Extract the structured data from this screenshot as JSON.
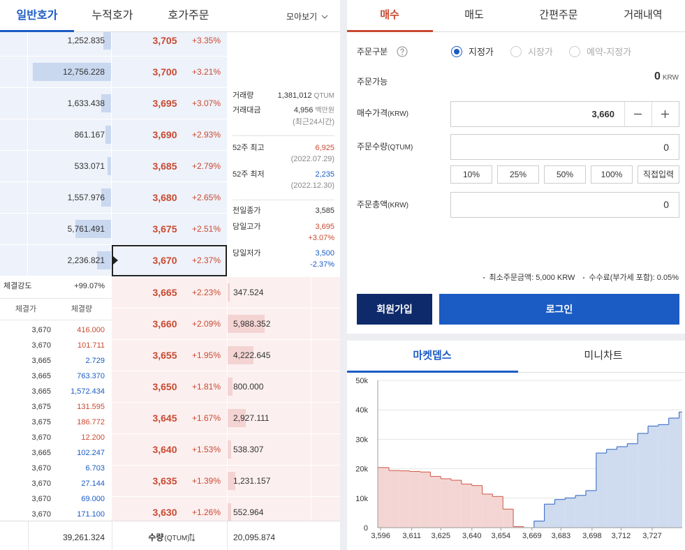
{
  "orderbook": {
    "tabs": [
      "일반호가",
      "누적호가",
      "호가주문"
    ],
    "view_toggle": "모아보기",
    "asks": [
      {
        "size": "1,252.835",
        "price": "3,705",
        "change": "+3.35%"
      },
      {
        "size": "12,756.228",
        "price": "3,700",
        "change": "+3.21%"
      },
      {
        "size": "1,633.438",
        "price": "3,695",
        "change": "+3.07%"
      },
      {
        "size": "861.167",
        "price": "3,690",
        "change": "+2.93%"
      },
      {
        "size": "533.071",
        "price": "3,685",
        "change": "+2.79%"
      },
      {
        "size": "1,557.976",
        "price": "3,680",
        "change": "+2.65%"
      },
      {
        "size": "5,761.491",
        "price": "3,675",
        "change": "+2.51%"
      },
      {
        "size": "2,236.821",
        "price": "3,670",
        "change": "+2.37%"
      }
    ],
    "bids": [
      {
        "size": "347.524",
        "price": "3,665",
        "change": "+2.23%"
      },
      {
        "size": "5,988.352",
        "price": "3,660",
        "change": "+2.09%"
      },
      {
        "size": "4,222.645",
        "price": "3,655",
        "change": "+1.95%"
      },
      {
        "size": "800.000",
        "price": "3,650",
        "change": "+1.81%"
      },
      {
        "size": "2,927.111",
        "price": "3,645",
        "change": "+1.67%"
      },
      {
        "size": "538.307",
        "price": "3,640",
        "change": "+1.53%"
      },
      {
        "size": "1,231.157",
        "price": "3,635",
        "change": "+1.39%"
      },
      {
        "size": "552.964",
        "price": "3,630",
        "change": "+1.26%"
      }
    ],
    "market_info": [
      {
        "label": "거래량",
        "value": "1,381,012",
        "unit": "QTUM"
      },
      {
        "label": "거래대금",
        "value": "4,956",
        "unit": "백만원",
        "note": "(최근24시간)"
      },
      {
        "label": "52주 최고",
        "value": "6,925",
        "note": "(2022.07.29)",
        "color": "#c84a31"
      },
      {
        "label": "52주 최저",
        "value": "2,235",
        "note": "(2022.12.30)",
        "color": "#1a5bc4"
      },
      {
        "label": "전일종가",
        "value": "3,585"
      },
      {
        "label": "당일고가",
        "value": "3,695",
        "note": "+3.07%",
        "color": "#c84a31",
        "note_color": "#c84a31"
      },
      {
        "label": "당일저가",
        "value": "3,500",
        "note": "-2.37%",
        "color": "#1a5bc4",
        "note_color": "#1a5bc4"
      }
    ],
    "trade_strength": {
      "label": "체결강도",
      "value": "+99.07%"
    },
    "trades": {
      "headers": [
        "체결가",
        "체결량"
      ],
      "rows": [
        {
          "price": "3,670",
          "volume": "416.000",
          "color": "#c84a31"
        },
        {
          "price": "3,670",
          "volume": "101.711",
          "color": "#c84a31"
        },
        {
          "price": "3,665",
          "volume": "2.729",
          "color": "#1a5bc4"
        },
        {
          "price": "3,665",
          "volume": "763.370",
          "color": "#1a5bc4"
        },
        {
          "price": "3,665",
          "volume": "1,572.434",
          "color": "#1a5bc4"
        },
        {
          "price": "3,675",
          "volume": "131.595",
          "color": "#c84a31"
        },
        {
          "price": "3,675",
          "volume": "186.772",
          "color": "#c84a31"
        },
        {
          "price": "3,670",
          "volume": "12.200",
          "color": "#c84a31"
        },
        {
          "price": "3,665",
          "volume": "102.247",
          "color": "#1a5bc4"
        },
        {
          "price": "3,670",
          "volume": "6.703",
          "color": "#1a5bc4"
        },
        {
          "price": "3,670",
          "volume": "27.144",
          "color": "#1a5bc4"
        },
        {
          "price": "3,670",
          "volume": "69.000",
          "color": "#1a5bc4"
        },
        {
          "price": "3,670",
          "volume": "171.100",
          "color": "#1a5bc4"
        }
      ]
    },
    "footer": {
      "ask_total": "39,261.324",
      "label": "수량",
      "unit": "(QTUM)",
      "bid_total": "20,095.874"
    }
  },
  "order_form": {
    "tabs": [
      "매수",
      "매도",
      "간편주문",
      "거래내역"
    ],
    "order_type": {
      "label": "주문구분",
      "options": [
        "지정가",
        "시장가",
        "예약-지정가"
      ]
    },
    "available": {
      "label": "주문가능",
      "value": "0",
      "unit": "KRW"
    },
    "price": {
      "label": "매수가격",
      "unit": "(KRW)",
      "value": "3,660"
    },
    "quantity": {
      "label": "주문수량",
      "unit": "(QTUM)",
      "value": "0"
    },
    "percent_buttons": [
      "10%",
      "25%",
      "50%",
      "100%",
      "직접입력"
    ],
    "total": {
      "label": "주문총액",
      "unit": "(KRW)",
      "value": "0"
    },
    "notes": [
      "최소주문금액: 5,000 KRW",
      "수수료(부가세 포함): 0.05%"
    ],
    "buttons": [
      "회원가입",
      "로그인"
    ]
  },
  "depth_panel": {
    "tabs": [
      "마켓뎁스",
      "미니차트"
    ],
    "chart": {
      "type": "depth",
      "xlim": [
        3594.6,
        3741.5
      ],
      "ylim": [
        0,
        50000
      ],
      "xticks": [
        {
          "value": 3596,
          "label": "3,596"
        },
        {
          "value": 3611,
          "label": "3,611"
        },
        {
          "value": 3625,
          "label": "3,625"
        },
        {
          "value": 3640,
          "label": "3,640"
        },
        {
          "value": 3654,
          "label": "3,654"
        },
        {
          "value": 3669,
          "label": "3,669"
        },
        {
          "value": 3683,
          "label": "3,683"
        },
        {
          "value": 3698,
          "label": "3,698"
        },
        {
          "value": 3712,
          "label": "3,712"
        },
        {
          "value": 3727,
          "label": "3,727"
        }
      ],
      "yticks": [
        0,
        {
          "value": 10000,
          "label": "10k"
        },
        {
          "value": 20000,
          "label": "20k"
        },
        {
          "value": 30000,
          "label": "30k"
        },
        {
          "value": 40000,
          "label": "40k"
        },
        {
          "value": 50000,
          "label": "50k"
        }
      ],
      "grid": true,
      "series": [
        {
          "color": "#f3d6d3",
          "line_color": "#cf5446",
          "step": "pre",
          "x": [
            3600,
            3605,
            3610,
            3615,
            3620,
            3625,
            3630,
            3635,
            3640,
            3645,
            3650,
            3655,
            3660,
            3665
          ],
          "values": [
            20400,
            19400,
            19300,
            19100,
            18900,
            17400,
            16600,
            16100,
            14800,
            14300,
            11400,
            10600,
            6300,
            350
          ]
        },
        {
          "color": "#cfdbef",
          "line_color": "#2a62c4",
          "step": "post",
          "x": [
            3670,
            3675,
            3680,
            3685,
            3690,
            3695,
            3700,
            3705,
            3710,
            3715,
            3720,
            3725,
            3730,
            3735,
            3740
          ],
          "values": [
            2237,
            7998,
            9556,
            10089,
            10950,
            12584,
            25340,
            26593,
            27500,
            28500,
            32000,
            34500,
            35000,
            37200,
            39261
          ]
        }
      ]
    }
  }
}
